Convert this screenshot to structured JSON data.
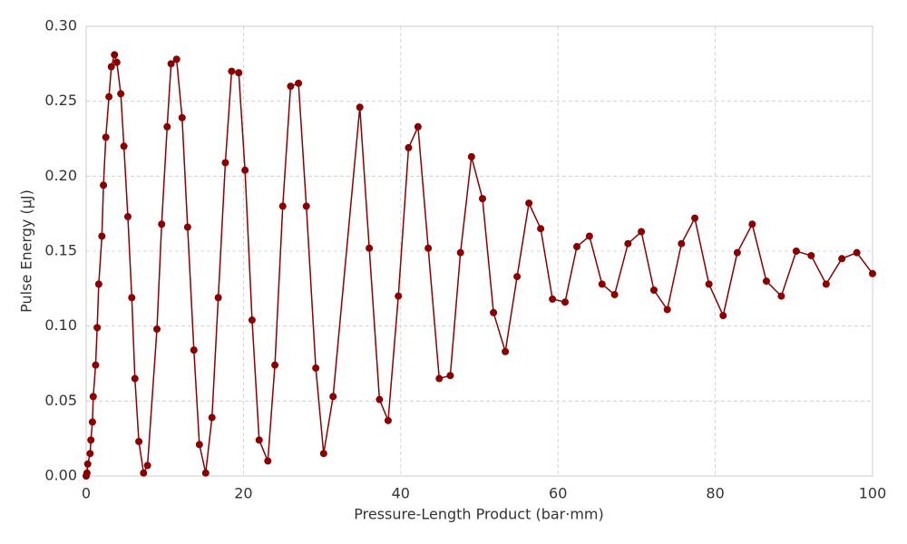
{
  "chart_data": {
    "type": "line",
    "xlabel": "Pressure-Length Product (bar·mm)",
    "ylabel": "Pulse Energy (μJ)",
    "x": [
      0,
      0.1,
      0.2,
      0.5,
      0.6,
      0.8,
      0.9,
      1.2,
      1.4,
      1.6,
      2.0,
      2.2,
      2.5,
      2.9,
      3.2,
      3.6,
      3.9,
      4.4,
      4.8,
      5.3,
      5.8,
      6.2,
      6.7,
      7.3,
      7.8,
      9.0,
      9.6,
      10.3,
      10.8,
      11.5,
      12.2,
      12.9,
      13.7,
      14.4,
      15.2,
      16.0,
      16.8,
      17.7,
      18.5,
      19.4,
      20.2,
      21.1,
      22.0,
      23.1,
      24.0,
      25.0,
      26.0,
      27.0,
      28.0,
      29.2,
      30.2,
      31.4,
      34.8,
      36.0,
      37.3,
      38.4,
      39.7,
      41.0,
      42.2,
      43.5,
      44.9,
      46.3,
      47.6,
      49.0,
      50.4,
      51.8,
      53.3,
      54.8,
      56.3,
      57.8,
      59.3,
      60.9,
      62.4,
      64.0,
      65.6,
      67.2,
      68.9,
      70.6,
      72.2,
      73.9,
      75.7,
      77.4,
      79.2,
      81.0,
      82.8,
      84.7,
      86.5,
      88.4,
      90.3,
      92.2,
      94.1,
      96.1,
      98.0,
      100
    ],
    "series": [
      {
        "color": "#8b0000",
        "values": [
          0,
          0.002,
          0.008,
          0.015,
          0.024,
          0.036,
          0.053,
          0.074,
          0.099,
          0.128,
          0.16,
          0.194,
          0.226,
          0.253,
          0.273,
          0.281,
          0.276,
          0.255,
          0.22,
          0.173,
          0.119,
          0.065,
          0.023,
          0.002,
          0.007,
          0.098,
          0.168,
          0.233,
          0.275,
          0.278,
          0.239,
          0.166,
          0.084,
          0.021,
          0.002,
          0.039,
          0.119,
          0.209,
          0.27,
          0.269,
          0.204,
          0.104,
          0.024,
          0.01,
          0.074,
          0.18,
          0.26,
          0.262,
          0.18,
          0.072,
          0.015,
          0.053,
          0.246,
          0.152,
          0.051,
          0.037,
          0.12,
          0.219,
          0.233,
          0.152,
          0.065,
          0.067,
          0.149,
          0.213,
          0.185,
          0.109,
          0.083,
          0.133,
          0.182,
          0.165,
          0.118,
          0.116,
          0.153,
          0.16,
          0.128,
          0.121,
          0.155,
          0.163,
          0.124,
          0.111,
          0.155,
          0.172,
          0.128,
          0.107,
          0.149,
          0.168,
          0.13,
          0.12,
          0.15,
          0.147,
          0.128,
          0.145,
          0.149,
          0.135
        ]
      }
    ],
    "xlim": [
      0,
      100
    ],
    "xticks": [
      0,
      20,
      40,
      60,
      80,
      100
    ],
    "ylim": [
      0,
      0.3
    ],
    "yticks": [
      {
        "value": 0,
        "label": "0.00"
      },
      0.05,
      {
        "value": 0.1,
        "label": "0.10"
      },
      0.15,
      {
        "value": 0.2,
        "label": "0.20"
      },
      0.25,
      {
        "value": 0.3,
        "label": "0.30"
      }
    ],
    "grid": true
  }
}
